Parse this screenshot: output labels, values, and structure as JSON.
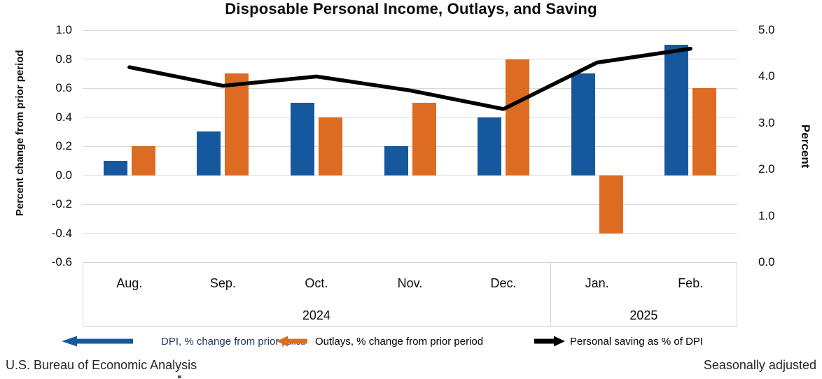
{
  "title": "Disposable Personal Income, Outlays, and Saving",
  "footer": {
    "source": "U.S. Bureau of Economic Analysis",
    "note": "Seasonally adjusted"
  },
  "colors": {
    "dpi_blue": "#15589E",
    "outlays_orange": "#DD6B21",
    "saving_black": "#000000",
    "gridline_gray": "#D9D9D9"
  },
  "legend": [
    {
      "id": "dpi",
      "arrow": "left",
      "color": "#15589E",
      "label": "DPI, % change from prior",
      "label_small": "period"
    },
    {
      "id": "outlays",
      "arrow": "left",
      "color": "#DD6B21",
      "label": "Outlays, % change from prior period",
      "label_small": ""
    },
    {
      "id": "saving",
      "arrow": "right",
      "color": "#000000",
      "label": "Personal saving as % of DPI",
      "label_small": ""
    }
  ],
  "chart_data": {
    "type": "bar",
    "subtype": "grouped bars with overlaid line, dual y-axes",
    "categories": [
      "Aug.",
      "Sep.",
      "Oct.",
      "Nov.",
      "Dec.",
      "Jan.",
      "Feb."
    ],
    "year_groups": [
      {
        "label": "2024",
        "months": 5
      },
      {
        "label": "2025",
        "months": 2
      }
    ],
    "series": [
      {
        "name": "DPI, % change from prior period",
        "type": "bar",
        "axis": "left",
        "color": "#15589E",
        "values": [
          0.1,
          0.3,
          0.5,
          0.2,
          0.4,
          0.7,
          0.9
        ]
      },
      {
        "name": "Outlays, % change from prior period",
        "type": "bar",
        "axis": "left",
        "color": "#DD6B21",
        "values": [
          0.2,
          0.7,
          0.4,
          0.5,
          0.8,
          -0.4,
          0.6
        ]
      },
      {
        "name": "Personal saving as % of DPI",
        "type": "line",
        "axis": "right",
        "color": "#000000",
        "values": [
          4.2,
          3.8,
          4.0,
          3.7,
          3.3,
          4.3,
          4.6
        ]
      }
    ],
    "left_axis": {
      "title": "Percent change from prior period",
      "min": -0.6,
      "max": 1.0,
      "step": 0.2,
      "ticks": [
        "1.0",
        "0.8",
        "0.6",
        "0.4",
        "0.2",
        "0.0",
        "-0.2",
        "-0.4",
        "-0.6"
      ]
    },
    "right_axis": {
      "title": "Percent",
      "min": 0.0,
      "max": 5.0,
      "step": 1.0,
      "ticks": [
        "5.0",
        "4.0",
        "3.0",
        "2.0",
        "1.0",
        "0.0"
      ]
    },
    "grid": true,
    "legend_position": "bottom"
  }
}
